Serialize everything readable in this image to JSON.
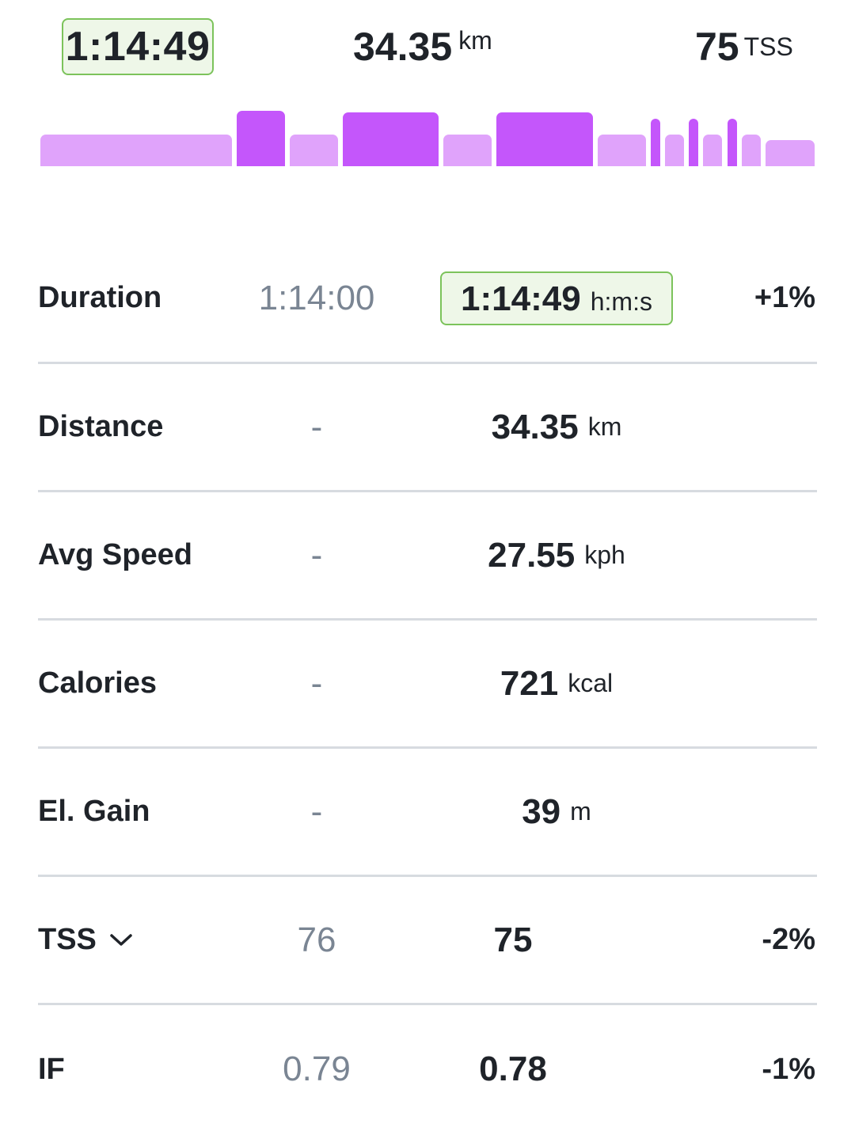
{
  "summary": {
    "duration": "1:14:49",
    "distance_value": "34.35",
    "distance_unit": "km",
    "tss_value": "75",
    "tss_unit": "TSS"
  },
  "workout_structure": {
    "colors": {
      "light": "#e0a3fb",
      "dark": "#c456fb"
    }
  },
  "metrics": [
    {
      "label": "Duration",
      "planned": "1:14:00",
      "completed_value": "1:14:49",
      "completed_unit": "h:m:s",
      "diff": "+1%"
    },
    {
      "label": "Distance",
      "planned": "-",
      "completed_value": "34.35",
      "completed_unit": "km",
      "diff": ""
    },
    {
      "label": "Avg Speed",
      "planned": "-",
      "completed_value": "27.55",
      "completed_unit": "kph",
      "diff": ""
    },
    {
      "label": "Calories",
      "planned": "-",
      "completed_value": "721",
      "completed_unit": "kcal",
      "diff": ""
    },
    {
      "label": "El. Gain",
      "planned": "-",
      "completed_value": "39",
      "completed_unit": "m",
      "diff": ""
    },
    {
      "label": "TSS",
      "planned": "76",
      "completed_value": "75",
      "completed_unit": "",
      "diff": "-2%",
      "icon": "chevron-down-icon"
    },
    {
      "label": "IF",
      "planned": "0.79",
      "completed_value": "0.78",
      "completed_unit": "",
      "diff": "-1%"
    }
  ]
}
